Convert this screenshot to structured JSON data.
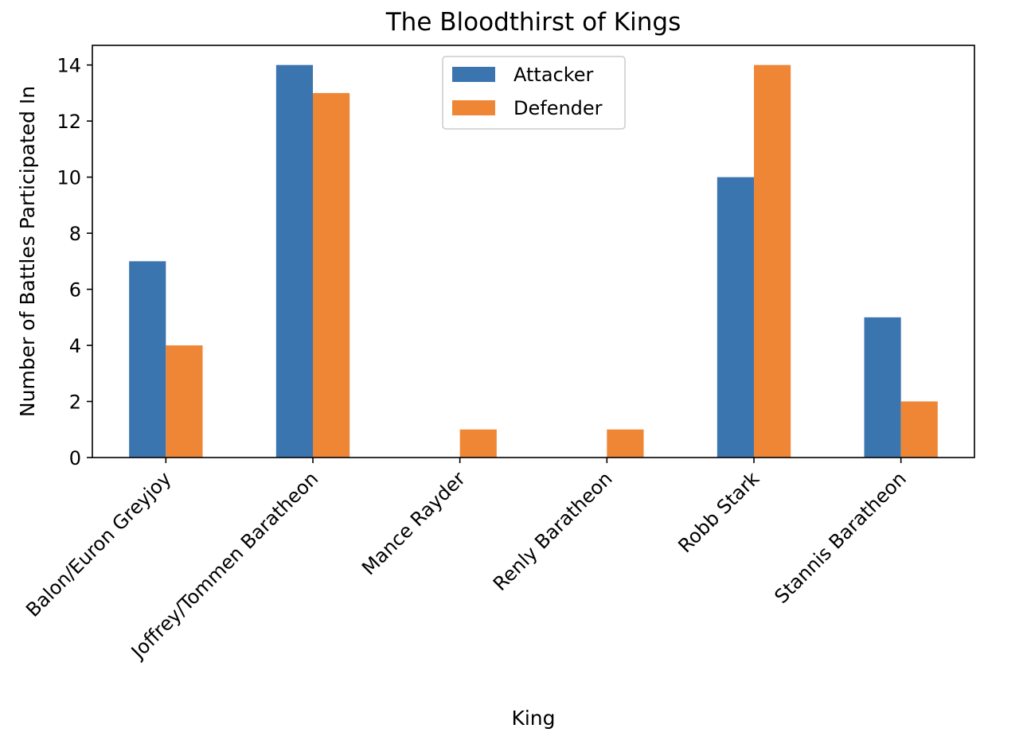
{
  "chart_data": {
    "type": "bar",
    "title": "The Bloodthirst of Kings",
    "xlabel": "King",
    "ylabel": "Number of Battles Participated In",
    "categories": [
      "Balon/Euron Greyjoy",
      "Joffrey/Tommen Baratheon",
      "Mance Rayder",
      "Renly Baratheon",
      "Robb Stark",
      "Stannis Baratheon"
    ],
    "series": [
      {
        "name": "Attacker",
        "color": "#3b75af",
        "values": [
          7,
          14,
          0,
          0,
          10,
          5
        ]
      },
      {
        "name": "Defender",
        "color": "#ef8636",
        "values": [
          4,
          13,
          1,
          1,
          14,
          2
        ]
      }
    ],
    "ylim": [
      0,
      14.7
    ],
    "yticks": [
      0,
      2,
      4,
      6,
      8,
      10,
      12,
      14
    ],
    "grid": false,
    "legend_position": "upper center"
  }
}
